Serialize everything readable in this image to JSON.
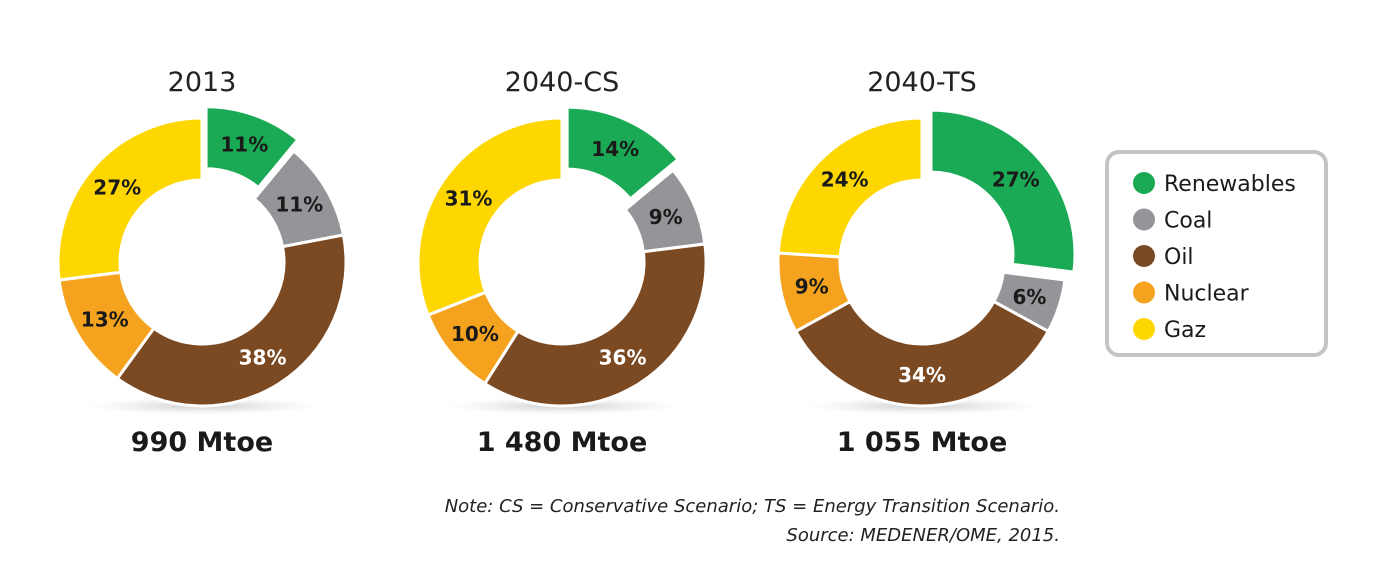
{
  "chart_data": [
    {
      "type": "pie",
      "title": "2013",
      "total_label": "990 Mtoe",
      "categories": [
        "Renewables",
        "Coal",
        "Oil",
        "Nuclear",
        "Gaz"
      ],
      "values": [
        11,
        11,
        38,
        13,
        27
      ],
      "labels": [
        "11%",
        "11%",
        "38%",
        "13%",
        "27%"
      ],
      "exploded": "Renewables"
    },
    {
      "type": "pie",
      "title": "2040-CS",
      "total_label": "1 480 Mtoe",
      "categories": [
        "Renewables",
        "Coal",
        "Oil",
        "Nuclear",
        "Gaz"
      ],
      "values": [
        14,
        9,
        36,
        10,
        31
      ],
      "labels": [
        "14%",
        "9%",
        "36%",
        "10%",
        "31%"
      ],
      "exploded": "Renewables"
    },
    {
      "type": "pie",
      "title": "2040-TS",
      "total_label": "1 055 Mtoe",
      "categories": [
        "Renewables",
        "Coal",
        "Oil",
        "Nuclear",
        "Gaz"
      ],
      "values": [
        27,
        6,
        34,
        9,
        24
      ],
      "labels": [
        "27%",
        "6%",
        "34%",
        "9%",
        "24%"
      ],
      "exploded": "Renewables"
    }
  ],
  "legend": {
    "placement": "right",
    "items": [
      {
        "name": "Renewables",
        "color": "#1aaa55"
      },
      {
        "name": "Coal",
        "color": "#939598"
      },
      {
        "name": "Oil",
        "color": "#7b4a22"
      },
      {
        "name": "Nuclear",
        "color": "#f5a31e"
      },
      {
        "name": "Gaz",
        "color": "#fed700"
      }
    ]
  },
  "notes": {
    "note": "Note: CS = Conservative Scenario; TS = Energy Transition Scenario.",
    "source": "Source: MEDENER/OME, 2015."
  }
}
